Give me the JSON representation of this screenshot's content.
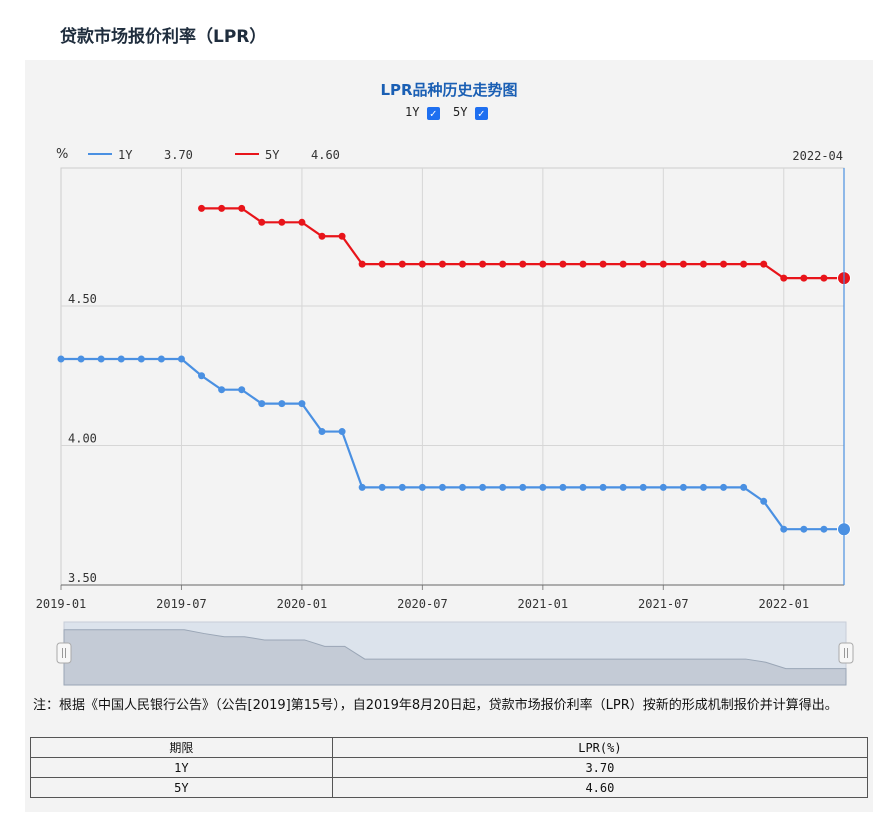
{
  "page": {
    "title": "贷款市场报价利率（LPR）"
  },
  "toggles": [
    {
      "label": "1Y",
      "checked": true
    },
    {
      "label": "5Y",
      "checked": true
    }
  ],
  "note": "注：根据《中国人民银行公告》（公告[2019]第15号），自2019年8月20日起，贷款市场报价利率（LPR）按新的形成机制报价并计算得出。",
  "table": {
    "headers": [
      "期限",
      "LPR(%)"
    ],
    "rows": [
      {
        "term": "1Y",
        "rate": "3.70"
      },
      {
        "term": "5Y",
        "rate": "4.60"
      }
    ]
  },
  "chart_data": {
    "type": "line",
    "title": "LPR品种历史走势图",
    "y_unit": "%",
    "ylim": [
      3.5,
      4.85
    ],
    "y_ticks": [
      3.5,
      4.0,
      4.5
    ],
    "y_tick_labels": [
      "3.50",
      "4.00",
      "4.50"
    ],
    "x_tick_labels": [
      "2019-01",
      "2019-07",
      "2020-01",
      "2020-07",
      "2021-01",
      "2021-07",
      "2022-01"
    ],
    "grid": true,
    "cursor_label": "2022-04",
    "x": [
      "2019-01",
      "2019-02",
      "2019-03",
      "2019-04",
      "2019-05",
      "2019-06",
      "2019-07",
      "2019-08",
      "2019-09",
      "2019-10",
      "2019-11",
      "2019-12",
      "2020-01",
      "2020-02",
      "2020-03",
      "2020-04",
      "2020-05",
      "2020-06",
      "2020-07",
      "2020-08",
      "2020-09",
      "2020-10",
      "2020-11",
      "2020-12",
      "2021-01",
      "2021-02",
      "2021-03",
      "2021-04",
      "2021-05",
      "2021-06",
      "2021-07",
      "2021-08",
      "2021-09",
      "2021-10",
      "2021-11",
      "2021-12",
      "2022-01",
      "2022-02",
      "2022-03",
      "2022-04"
    ],
    "series": [
      {
        "name": "1Y",
        "current": "3.70",
        "color": "#4a90e2",
        "values": [
          4.31,
          4.31,
          4.31,
          4.31,
          4.31,
          4.31,
          4.31,
          4.25,
          4.2,
          4.2,
          4.15,
          4.15,
          4.15,
          4.05,
          4.05,
          3.85,
          3.85,
          3.85,
          3.85,
          3.85,
          3.85,
          3.85,
          3.85,
          3.85,
          3.85,
          3.85,
          3.85,
          3.85,
          3.85,
          3.85,
          3.85,
          3.85,
          3.85,
          3.85,
          3.85,
          3.8,
          3.7,
          3.7,
          3.7,
          3.7
        ]
      },
      {
        "name": "5Y",
        "current": "4.60",
        "color": "#e8141a",
        "values": [
          null,
          null,
          null,
          null,
          null,
          null,
          null,
          4.85,
          4.85,
          4.85,
          4.8,
          4.8,
          4.8,
          4.75,
          4.75,
          4.65,
          4.65,
          4.65,
          4.65,
          4.65,
          4.65,
          4.65,
          4.65,
          4.65,
          4.65,
          4.65,
          4.65,
          4.65,
          4.65,
          4.65,
          4.65,
          4.65,
          4.65,
          4.65,
          4.65,
          4.65,
          4.6,
          4.6,
          4.6,
          4.6
        ]
      }
    ]
  }
}
